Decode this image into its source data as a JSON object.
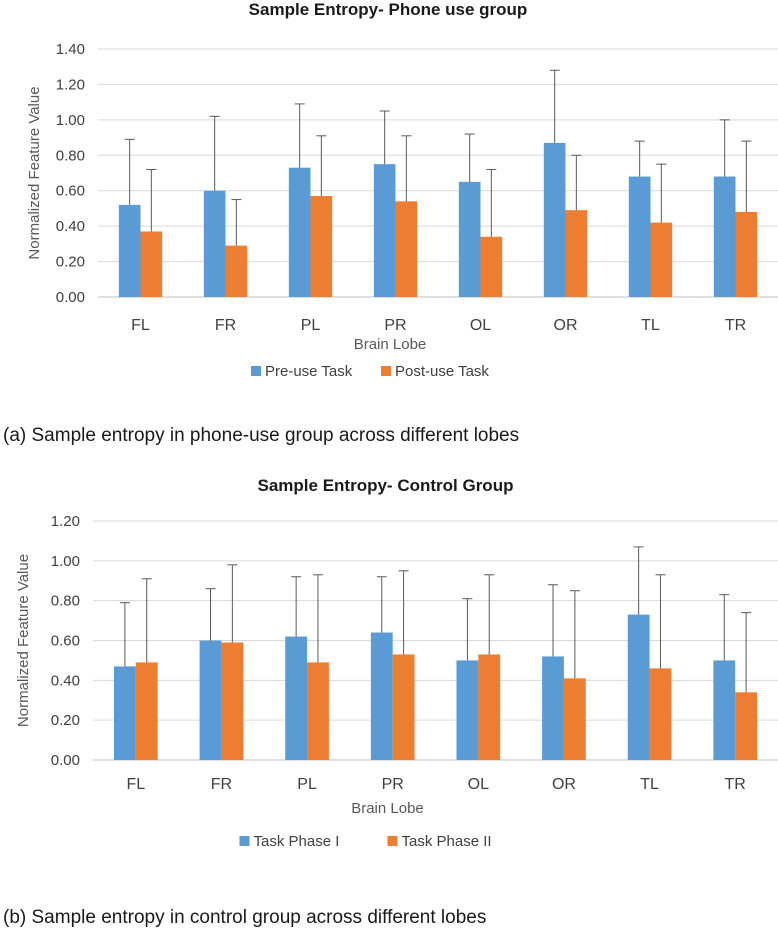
{
  "colors": {
    "pre": "#5b9bd5",
    "post": "#ed7d31",
    "grid": "#d9d9d9",
    "axis": "#bfbfbf",
    "error": "#595959"
  },
  "captions": {
    "a": "(a) Sample entropy in phone-use group across different lobes",
    "b": "(b) Sample entropy in control group across different lobes"
  },
  "chart_data": [
    {
      "type": "bar",
      "title": "Sample Entropy-  Phone use  group",
      "xlabel": "Brain Lobe",
      "ylabel": "Normalized Feature Value",
      "ylim": [
        0,
        1.4
      ],
      "yticks": [
        0,
        0.2,
        0.4,
        0.6,
        0.8,
        1.0,
        1.2,
        1.4
      ],
      "ytick_labels": [
        "0.00",
        "0.20",
        "0.40",
        "0.60",
        "0.80",
        "1.00",
        "1.20",
        "1.40"
      ],
      "grid": true,
      "legend_position": "bottom",
      "categories": [
        "FL",
        "FR",
        "PL",
        "PR",
        "OL",
        "OR",
        "TL",
        "TR"
      ],
      "series": [
        {
          "name": "Pre-use Task",
          "values": [
            0.52,
            0.6,
            0.73,
            0.75,
            0.65,
            0.87,
            0.68,
            0.68
          ],
          "error_plus": [
            0.37,
            0.42,
            0.36,
            0.3,
            0.27,
            0.41,
            0.2,
            0.32
          ]
        },
        {
          "name": "Post-use Task",
          "values": [
            0.37,
            0.29,
            0.57,
            0.54,
            0.34,
            0.49,
            0.42,
            0.48
          ],
          "error_plus": [
            0.35,
            0.26,
            0.34,
            0.37,
            0.38,
            0.31,
            0.33,
            0.4
          ]
        }
      ]
    },
    {
      "type": "bar",
      "title": "Sample Entropy-  Control  Group",
      "xlabel": "Brain Lobe",
      "ylabel": "Normalized Feature Value",
      "ylim": [
        0,
        1.2
      ],
      "yticks": [
        0,
        0.2,
        0.4,
        0.6,
        0.8,
        1.0,
        1.2
      ],
      "ytick_labels": [
        "0.00",
        "0.20",
        "0.40",
        "0.60",
        "0.80",
        "1.00",
        "1.20"
      ],
      "grid": true,
      "legend_position": "bottom",
      "categories": [
        "FL",
        "FR",
        "PL",
        "PR",
        "OL",
        "OR",
        "TL",
        "TR"
      ],
      "series": [
        {
          "name": "Task Phase I",
          "values": [
            0.47,
            0.6,
            0.62,
            0.64,
            0.5,
            0.52,
            0.73,
            0.5
          ],
          "error_plus": [
            0.32,
            0.26,
            0.3,
            0.28,
            0.31,
            0.36,
            0.34,
            0.33
          ]
        },
        {
          "name": "Task Phase II",
          "values": [
            0.49,
            0.59,
            0.49,
            0.53,
            0.53,
            0.41,
            0.46,
            0.34
          ],
          "error_plus": [
            0.42,
            0.39,
            0.44,
            0.42,
            0.4,
            0.44,
            0.47,
            0.4
          ]
        }
      ]
    }
  ]
}
